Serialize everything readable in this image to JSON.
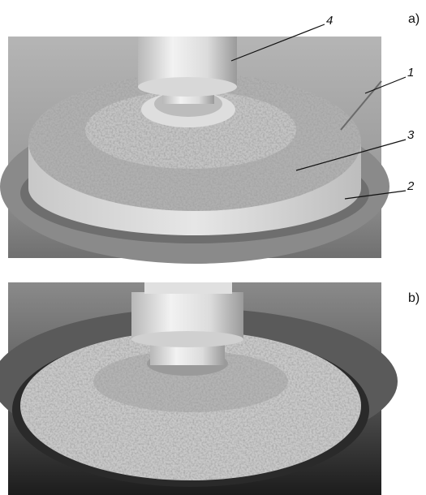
{
  "panels": [
    {
      "label": "a)",
      "callouts": [
        "4",
        "1",
        "3",
        "2"
      ]
    },
    {
      "label": "b)"
    }
  ]
}
